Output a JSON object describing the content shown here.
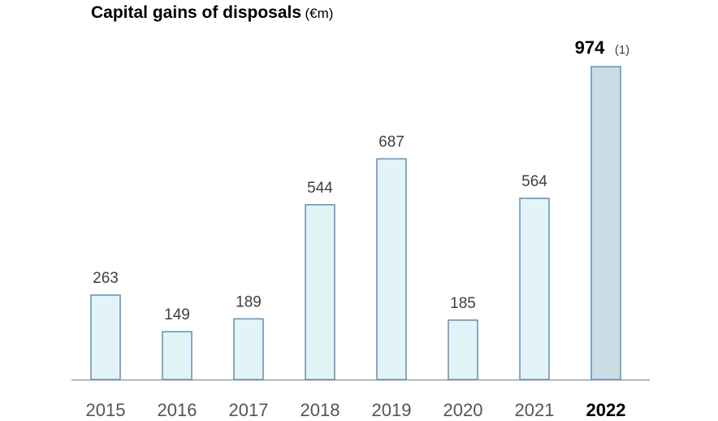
{
  "chart_data": {
    "type": "bar",
    "title": "Capital gains of disposals",
    "title_unit": "(€m)",
    "categories": [
      "2015",
      "2016",
      "2017",
      "2018",
      "2019",
      "2020",
      "2021",
      "2022"
    ],
    "values": [
      263,
      149,
      189,
      544,
      687,
      185,
      564,
      974
    ],
    "highlight_index": 7,
    "highlight_note": "(1)",
    "ylim": [
      0,
      1000
    ],
    "grid": false,
    "legend": "none",
    "colors": {
      "bar_fill": "#e3f4f8",
      "bar_stroke": "#5f8fb3",
      "highlight_fill": "#cbdde4",
      "axis": "#9a9a9a"
    }
  }
}
